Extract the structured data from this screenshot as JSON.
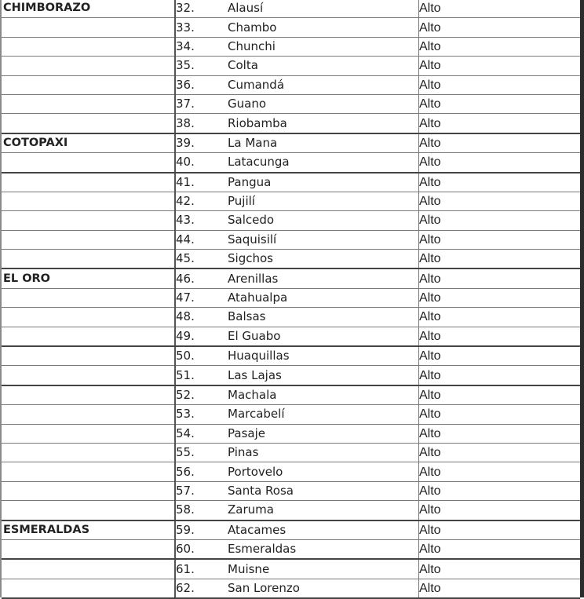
{
  "rows": [
    {
      "province": "CHIMBORAZO",
      "num": "32.",
      "canton": "Alausí",
      "level": "Alto"
    },
    {
      "province": "",
      "num": "33.",
      "canton": "Chambo",
      "level": "Alto"
    },
    {
      "province": "",
      "num": "34.",
      "canton": "Chunchi",
      "level": "Alto"
    },
    {
      "province": "",
      "num": "35.",
      "canton": "Colta",
      "level": "Alto"
    },
    {
      "province": "",
      "num": "36.",
      "canton": "Cumandá",
      "level": "Alto"
    },
    {
      "province": "",
      "num": "37.",
      "canton": "Guano",
      "level": "Alto"
    },
    {
      "province": "",
      "num": "38.",
      "canton": "Riobamba",
      "level": "Alto",
      "thick": true
    },
    {
      "province": "COTOPAXI",
      "num": "39.",
      "canton": "La Mana",
      "level": "Alto"
    },
    {
      "province": "",
      "num": "40.",
      "canton": "Latacunga",
      "level": "Alto",
      "thick": true
    },
    {
      "province": "",
      "num": "41.",
      "canton": "Pangua",
      "level": "Alto"
    },
    {
      "province": "",
      "num": "42.",
      "canton": "Pujilí",
      "level": "Alto"
    },
    {
      "province": "",
      "num": "43.",
      "canton": "Salcedo",
      "level": "Alto"
    },
    {
      "province": "",
      "num": "44.",
      "canton": "Saquisilí",
      "level": "Alto"
    },
    {
      "province": "",
      "num": "45.",
      "canton": "Sigchos",
      "level": "Alto",
      "thick": true
    },
    {
      "province": "EL ORO",
      "num": "46.",
      "canton": "Arenillas",
      "level": "Alto"
    },
    {
      "province": "",
      "num": "47.",
      "canton": "Atahualpa",
      "level": "Alto"
    },
    {
      "province": "",
      "num": "48.",
      "canton": "Balsas",
      "level": "Alto"
    },
    {
      "province": "",
      "num": "49.",
      "canton": "El Guabo",
      "level": "Alto",
      "thick": true
    },
    {
      "province": "",
      "num": "50.",
      "canton": "Huaquillas",
      "level": "Alto"
    },
    {
      "province": "",
      "num": "51.",
      "canton": "Las Lajas",
      "level": "Alto",
      "thick": true
    },
    {
      "province": "",
      "num": "52.",
      "canton": "Machala",
      "level": "Alto"
    },
    {
      "province": "",
      "num": "53.",
      "canton": "Marcabelí",
      "level": "Alto"
    },
    {
      "province": "",
      "num": "54.",
      "canton": "Pasaje",
      "level": "Alto"
    },
    {
      "province": "",
      "num": "55.",
      "canton": "Pinas",
      "level": "Alto"
    },
    {
      "province": "",
      "num": "56.",
      "canton": "Portovelo",
      "level": "Alto"
    },
    {
      "province": "",
      "num": "57.",
      "canton": "Santa Rosa",
      "level": "Alto"
    },
    {
      "province": "",
      "num": "58.",
      "canton": "Zaruma",
      "level": "Alto",
      "thick": true
    },
    {
      "province": "ESMERALDAS",
      "num": "59.",
      "canton": "Atacames",
      "level": "Alto"
    },
    {
      "province": "",
      "num": "60.",
      "canton": "Esmeraldas",
      "level": "Alto",
      "thick": true
    },
    {
      "province": "",
      "num": "61.",
      "canton": "Muisne",
      "level": "Alto"
    },
    {
      "province": "",
      "num": "62.",
      "canton": "San Lorenzo",
      "level": "Alto",
      "thick": true
    }
  ]
}
